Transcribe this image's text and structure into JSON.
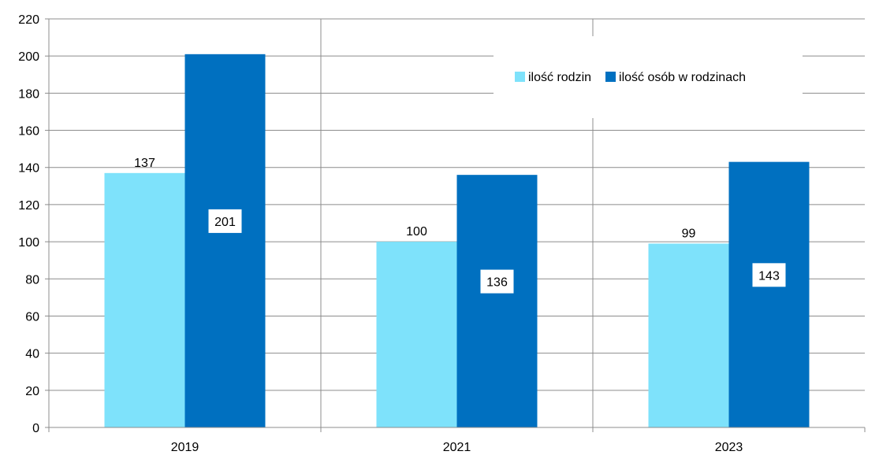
{
  "chart_data": {
    "type": "bar",
    "categories": [
      "2019",
      "2021",
      "2023"
    ],
    "series": [
      {
        "name": "ilość rodzin",
        "values": [
          137,
          100,
          99
        ],
        "color": "#7ee2fb",
        "label_style": "above"
      },
      {
        "name": "ilość osób w rodzinach",
        "values": [
          201,
          136,
          143
        ],
        "color": "#0070c0",
        "label_style": "boxed-inside"
      }
    ],
    "ylim": [
      0,
      220
    ],
    "yticks": [
      0,
      20,
      40,
      60,
      80,
      100,
      120,
      140,
      160,
      180,
      200,
      220
    ],
    "grid": {
      "horizontal": true,
      "vertical_category_separators": true
    },
    "legend_position": "top-right",
    "title": "",
    "xlabel": "",
    "ylabel": ""
  }
}
